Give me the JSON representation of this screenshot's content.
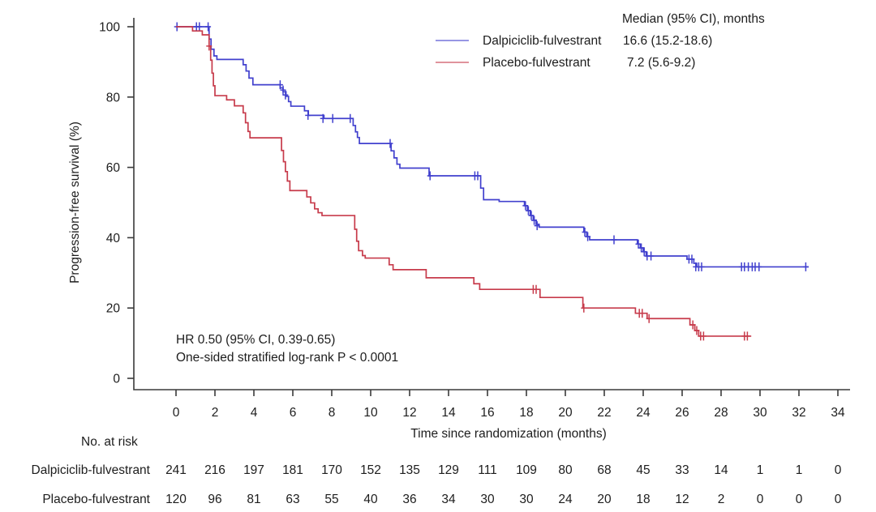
{
  "legend": {
    "median_header": "Median (95% CI), months",
    "items": [
      {
        "label": "Dalpiciclib-fulvestrant",
        "median": "16.6 (15.2-18.6)"
      },
      {
        "label": "Placebo-fulvestrant",
        "median": "7.2 (5.6-9.2)"
      }
    ]
  },
  "annotation": {
    "hr": "HR 0.50 (95% CI, 0.39-0.65)",
    "pvalue": "One-sided stratified log-rank P < 0.0001"
  },
  "chart_data": {
    "type": "line",
    "variant": "kaplan_meier_step",
    "title": "",
    "xlabel": "Time since randomization (months)",
    "ylabel": "Progression-free survival (%)",
    "xlim": [
      0,
      34
    ],
    "ylim": [
      0,
      100
    ],
    "x_ticks": [
      0,
      2,
      4,
      6,
      8,
      10,
      12,
      14,
      16,
      18,
      20,
      22,
      24,
      26,
      28,
      30,
      32,
      34
    ],
    "y_ticks": [
      0,
      20,
      40,
      60,
      80,
      100
    ],
    "grid": false,
    "legend_position": "top-right-inside",
    "axis_color": "#3a3a3a",
    "series": [
      {
        "name": "Dalpiciclib-fulvestrant",
        "color": "#4140ce",
        "end_time": 32.5,
        "steps": [
          [
            0,
            100
          ],
          [
            1.7,
            96.5
          ],
          [
            1.8,
            93.6
          ],
          [
            1.95,
            91.7
          ],
          [
            2.1,
            90.7
          ],
          [
            3.45,
            89.2
          ],
          [
            3.6,
            87.4
          ],
          [
            3.75,
            85.4
          ],
          [
            3.95,
            83.5
          ],
          [
            5.35,
            82.6
          ],
          [
            5.5,
            81.5
          ],
          [
            5.65,
            80.2
          ],
          [
            5.78,
            78.7
          ],
          [
            5.9,
            77.4
          ],
          [
            6.6,
            76.1
          ],
          [
            6.8,
            74.8
          ],
          [
            7.6,
            73.9
          ],
          [
            9.1,
            71.9
          ],
          [
            9.22,
            70.1
          ],
          [
            9.32,
            68.5
          ],
          [
            9.42,
            66.8
          ],
          [
            11.05,
            64.7
          ],
          [
            11.2,
            62.7
          ],
          [
            11.35,
            60.9
          ],
          [
            11.5,
            59.8
          ],
          [
            13,
            57.6
          ],
          [
            15.65,
            54.1
          ],
          [
            15.8,
            50.8
          ],
          [
            16.6,
            50.3
          ],
          [
            17.9,
            49.1
          ],
          [
            18.05,
            47.7
          ],
          [
            18.2,
            46.3
          ],
          [
            18.35,
            45
          ],
          [
            18.5,
            43.8
          ],
          [
            18.65,
            43
          ],
          [
            20.95,
            41.6
          ],
          [
            21.1,
            40.3
          ],
          [
            21.25,
            39.4
          ],
          [
            23.7,
            38.2
          ],
          [
            23.85,
            37.1
          ],
          [
            24,
            36
          ],
          [
            24.15,
            34.8
          ],
          [
            26.25,
            33.9
          ],
          [
            26.6,
            32.7
          ],
          [
            26.75,
            31.7
          ]
        ],
        "censors": [
          [
            0.05,
            100
          ],
          [
            1.05,
            100
          ],
          [
            1.2,
            100
          ],
          [
            1.65,
            100
          ],
          [
            5.35,
            83.5
          ],
          [
            5.5,
            82
          ],
          [
            5.62,
            80.6
          ],
          [
            6.78,
            74.8
          ],
          [
            7.55,
            73.9
          ],
          [
            8.05,
            73.9
          ],
          [
            8.95,
            73.9
          ],
          [
            11,
            66.8
          ],
          [
            13.05,
            57.6
          ],
          [
            15.35,
            57.6
          ],
          [
            15.5,
            57.6
          ],
          [
            17.95,
            49.1
          ],
          [
            18.1,
            47.7
          ],
          [
            18.25,
            46.3
          ],
          [
            18.4,
            44.9
          ],
          [
            18.55,
            43.4
          ],
          [
            21,
            41.6
          ],
          [
            21.15,
            40.3
          ],
          [
            22.5,
            39.4
          ],
          [
            23.75,
            38.2
          ],
          [
            23.9,
            37.1
          ],
          [
            24.05,
            36
          ],
          [
            24.2,
            34.8
          ],
          [
            24.4,
            34.8
          ],
          [
            26.35,
            33.9
          ],
          [
            26.5,
            33.9
          ],
          [
            26.7,
            31.7
          ],
          [
            26.85,
            31.7
          ],
          [
            27,
            31.7
          ],
          [
            29.05,
            31.7
          ],
          [
            29.2,
            31.7
          ],
          [
            29.4,
            31.7
          ],
          [
            29.6,
            31.7
          ],
          [
            29.75,
            31.7
          ],
          [
            29.95,
            31.7
          ],
          [
            32.35,
            31.7
          ]
        ]
      },
      {
        "name": "Placebo-fulvestrant",
        "color": "#c73b4b",
        "end_time": 29.55,
        "steps": [
          [
            0,
            100
          ],
          [
            0.85,
            98.8
          ],
          [
            1.35,
            97.7
          ],
          [
            1.7,
            94.5
          ],
          [
            1.78,
            90.5
          ],
          [
            1.85,
            86.8
          ],
          [
            1.92,
            83.2
          ],
          [
            2,
            80.4
          ],
          [
            2.6,
            79.2
          ],
          [
            3,
            77.5
          ],
          [
            3.45,
            75.5
          ],
          [
            3.57,
            72.7
          ],
          [
            3.7,
            70.2
          ],
          [
            3.8,
            68.4
          ],
          [
            5.42,
            64.8
          ],
          [
            5.52,
            61.6
          ],
          [
            5.62,
            58.8
          ],
          [
            5.72,
            56.1
          ],
          [
            5.85,
            53.4
          ],
          [
            6.72,
            51.6
          ],
          [
            6.92,
            49.9
          ],
          [
            7.12,
            48.2
          ],
          [
            7.3,
            47.1
          ],
          [
            7.5,
            46.3
          ],
          [
            9.18,
            42.4
          ],
          [
            9.28,
            39
          ],
          [
            9.38,
            36.3
          ],
          [
            9.58,
            34.9
          ],
          [
            9.72,
            34.2
          ],
          [
            10.95,
            32.3
          ],
          [
            11.15,
            30.9
          ],
          [
            12.85,
            28.6
          ],
          [
            15.3,
            26.9
          ],
          [
            15.6,
            25.3
          ],
          [
            18.7,
            23
          ],
          [
            20.9,
            20
          ],
          [
            23.6,
            18.5
          ],
          [
            24.2,
            17
          ],
          [
            26.4,
            15.2
          ],
          [
            26.65,
            13.6
          ],
          [
            26.85,
            12
          ]
        ],
        "censors": [
          [
            1.7,
            94.5
          ],
          [
            18.35,
            25.3
          ],
          [
            18.5,
            25.3
          ],
          [
            20.95,
            20
          ],
          [
            23.8,
            18.5
          ],
          [
            23.95,
            18.5
          ],
          [
            24.3,
            17
          ],
          [
            26.55,
            15.2
          ],
          [
            26.75,
            13.6
          ],
          [
            26.95,
            12
          ],
          [
            27.1,
            12
          ],
          [
            29.2,
            12
          ],
          [
            29.35,
            12
          ]
        ]
      }
    ],
    "at_risk": {
      "title": "No. at risk",
      "rows": [
        {
          "label": "Dalpiciclib-fulvestrant",
          "counts": [
            241,
            216,
            197,
            181,
            170,
            152,
            135,
            129,
            111,
            109,
            80,
            68,
            45,
            33,
            14,
            1,
            1,
            0
          ]
        },
        {
          "label": "Placebo-fulvestrant",
          "counts": [
            120,
            96,
            81,
            63,
            55,
            40,
            36,
            34,
            30,
            30,
            24,
            20,
            18,
            12,
            2,
            0,
            0,
            0
          ]
        }
      ]
    }
  }
}
